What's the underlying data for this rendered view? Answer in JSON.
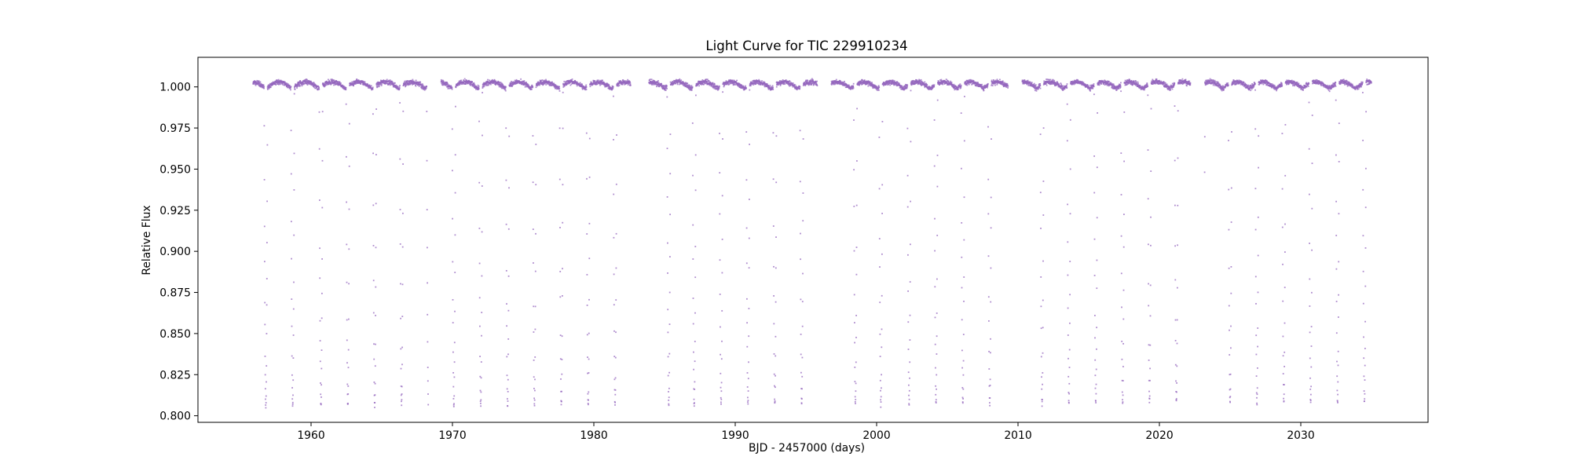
{
  "chart_data": {
    "type": "scatter",
    "title": "Light Curve for TIC 229910234",
    "xlabel": "BJD - 2457000 (days)",
    "ylabel": "Relative Flux",
    "xlim": [
      1952.0,
      2039.0
    ],
    "ylim": [
      0.796,
      1.018
    ],
    "x_ticks": [
      1960,
      1970,
      1980,
      1990,
      2000,
      2010,
      2020,
      2030
    ],
    "y_ticks": [
      0.8,
      0.825,
      0.85,
      0.875,
      0.9,
      0.925,
      0.95,
      0.975,
      1.0
    ],
    "x_tick_labels": [
      "1960",
      "1970",
      "1980",
      "1990",
      "2000",
      "2010",
      "2020",
      "2030"
    ],
    "y_tick_labels": [
      "0.800",
      "0.825",
      "0.850",
      "0.875",
      "0.900",
      "0.925",
      "0.950",
      "0.975",
      "1.000"
    ],
    "grid": false,
    "marker_color": "#9467bd",
    "baseline_flux": 1.0,
    "out_of_eclipse_variation": 0.004,
    "eclipse_depth_min_flux": 0.806,
    "period_days": 1.88,
    "first_eclipse_x": 1956.8,
    "observing_segments": [
      [
        1955.9,
        1968.3
      ],
      [
        1969.2,
        1982.6
      ],
      [
        1983.9,
        1995.8
      ],
      [
        1996.8,
        2009.3
      ],
      [
        2010.3,
        2022.2
      ],
      [
        2023.2,
        2035.0
      ]
    ],
    "eclipse_times": [
      1956.8,
      1958.7,
      1960.7,
      1962.6,
      1964.5,
      1966.4,
      1968.3,
      1970.1,
      1972.0,
      1973.9,
      1975.8,
      1977.7,
      1979.6,
      1981.5,
      1985.3,
      1987.1,
      1989.0,
      1990.9,
      1992.8,
      1994.7,
      1998.5,
      2000.3,
      2002.3,
      2004.2,
      2006.1,
      2008.0,
      2011.7,
      2013.6,
      2015.5,
      2017.4,
      2019.3,
      2021.2,
      2023.1,
      2025.0,
      2026.9,
      2028.8,
      2030.7,
      2032.6,
      2034.5
    ]
  }
}
